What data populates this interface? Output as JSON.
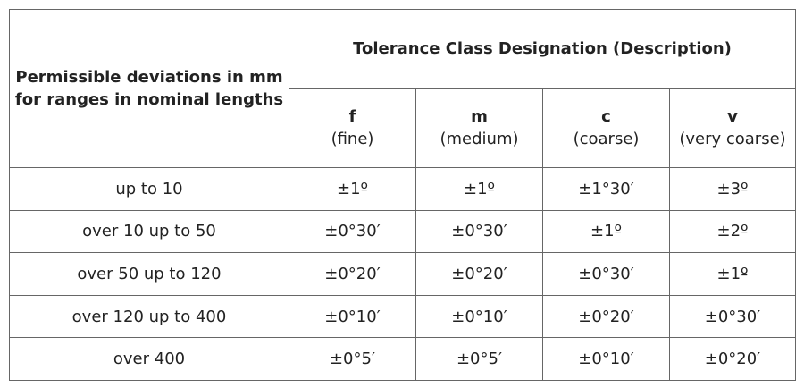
{
  "table": {
    "row_header": [
      "Permissible deviations in mm",
      "for ranges in nominal lengths"
    ],
    "group_header": "Tolerance Class Designation (Description)",
    "columns": [
      {
        "code": "f",
        "description": "(fine)"
      },
      {
        "code": "m",
        "description": "(medium)"
      },
      {
        "code": "c",
        "description": "(coarse)"
      },
      {
        "code": "v",
        "description": "(very coarse)"
      }
    ],
    "rows": [
      {
        "label": "up to 10",
        "values": [
          "±1º",
          "±1º",
          "±1°30′",
          "±3º"
        ]
      },
      {
        "label": "over 10 up to 50",
        "values": [
          "±0°30′",
          "±0°30′",
          "±1º",
          "±2º"
        ]
      },
      {
        "label": "over 50 up to 120",
        "values": [
          "±0°20′",
          "±0°20′",
          "±0°30′",
          "±1º"
        ]
      },
      {
        "label": "over 120 up to 400",
        "values": [
          "±0°10′",
          "±0°10′",
          "±0°20′",
          "±0°30′"
        ]
      },
      {
        "label": "over 400",
        "values": [
          "±0°5′",
          "±0°5′",
          "±0°10′",
          "±0°20′"
        ]
      }
    ]
  }
}
